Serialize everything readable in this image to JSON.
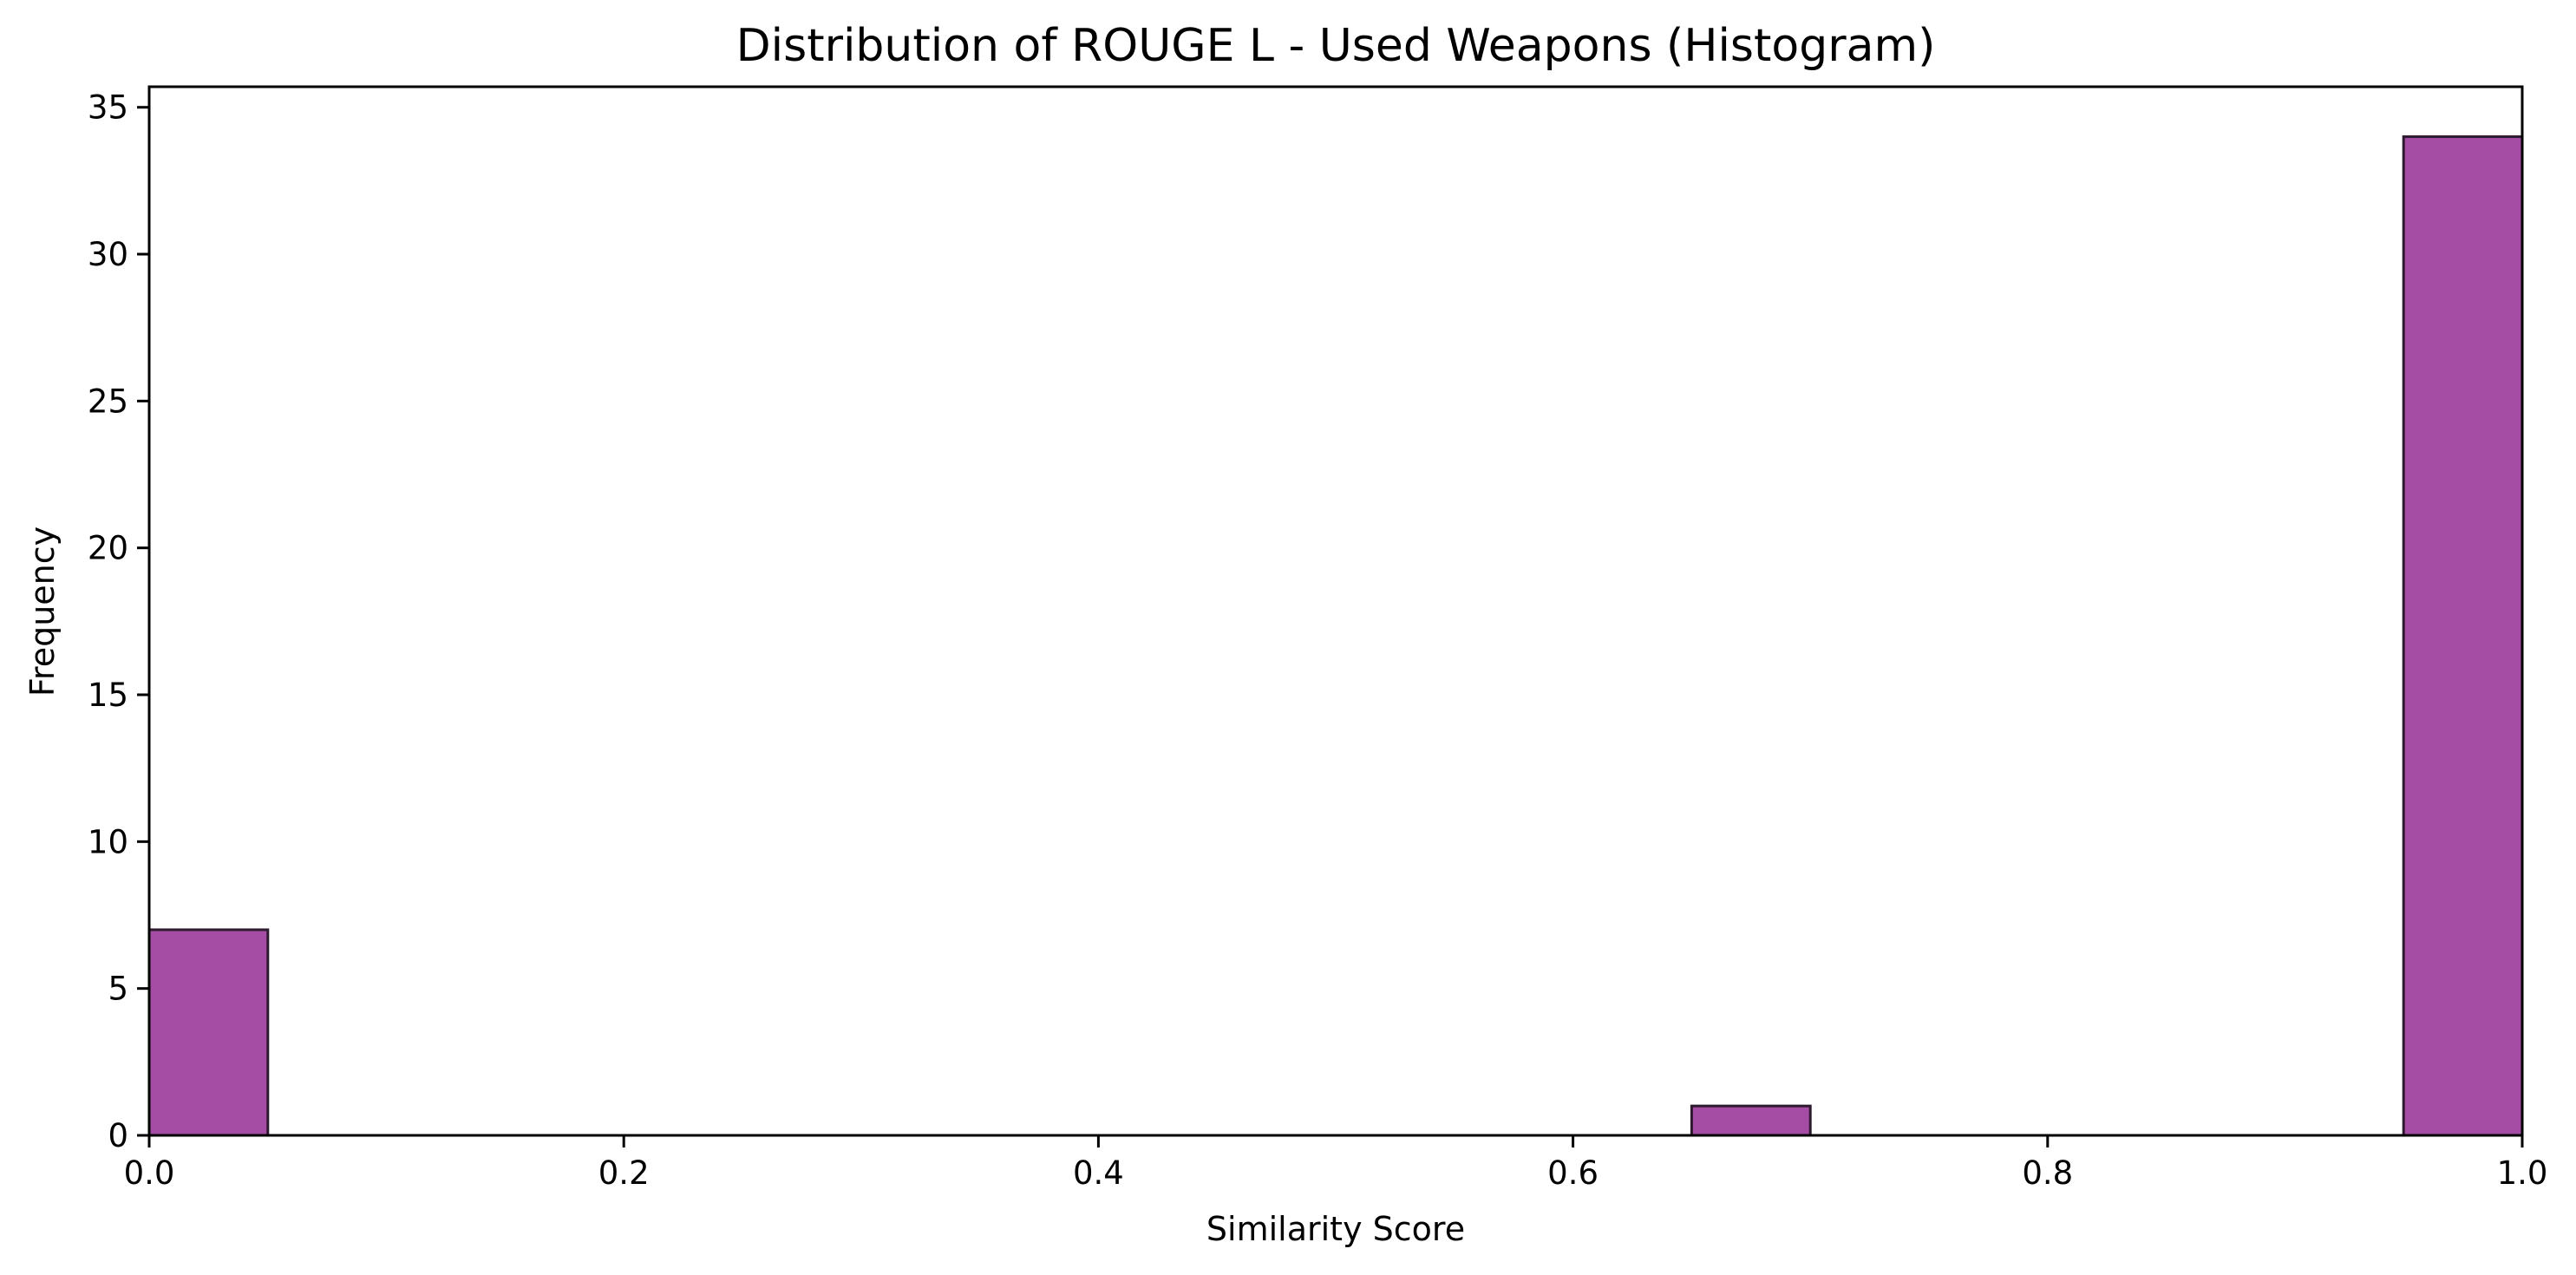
{
  "chart_data": {
    "type": "histogram",
    "title": "Distribution of ROUGE L - Used Weapons (Histogram)",
    "xlabel": "Similarity Score",
    "ylabel": "Frequency",
    "xlim": [
      0.0,
      1.0
    ],
    "ylim": [
      0,
      35.7
    ],
    "x_ticks": [
      0.0,
      0.2,
      0.4,
      0.6,
      0.8,
      1.0
    ],
    "x_tick_labels": [
      "0.0",
      "0.2",
      "0.4",
      "0.6",
      "0.8",
      "1.0"
    ],
    "y_ticks": [
      0,
      5,
      10,
      15,
      20,
      25,
      30,
      35
    ],
    "y_tick_labels": [
      "0",
      "5",
      "10",
      "15",
      "20",
      "25",
      "30",
      "35"
    ],
    "grid": false,
    "bar_color": "#a54ca5",
    "bar_edge_color": "#2e1a2e",
    "bins": [
      {
        "x0": 0.0,
        "x1": 0.05,
        "count": 7
      },
      {
        "x0": 0.65,
        "x1": 0.7,
        "count": 1
      },
      {
        "x0": 0.95,
        "x1": 1.0,
        "count": 34
      }
    ]
  }
}
